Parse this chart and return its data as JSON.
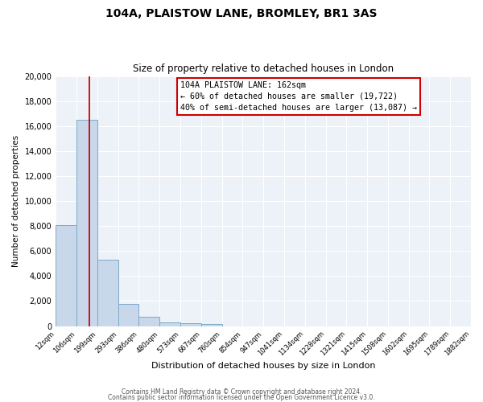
{
  "title": "104A, PLAISTOW LANE, BROMLEY, BR1 3AS",
  "subtitle": "Size of property relative to detached houses in London",
  "xlabel": "Distribution of detached houses by size in London",
  "ylabel": "Number of detached properties",
  "bar_color": "#c8d8ea",
  "bar_edge_color": "#7baac8",
  "background_color": "#edf1f8",
  "grid_color": "#ffffff",
  "annotation_box_color": "#ffffff",
  "annotation_box_edge": "#cc0000",
  "red_line_x": 162,
  "red_line_color": "#cc0000",
  "annotation_title": "104A PLAISTOW LANE: 162sqm",
  "annotation_line1": "← 60% of detached houses are smaller (19,722)",
  "annotation_line2": "40% of semi-detached houses are larger (13,087) →",
  "bins": [
    12,
    106,
    199,
    293,
    386,
    480,
    573,
    667,
    760,
    854,
    947,
    1041,
    1134,
    1228,
    1321,
    1415,
    1508,
    1602,
    1695,
    1789,
    1882
  ],
  "counts": [
    8100,
    16500,
    5300,
    1800,
    750,
    300,
    200,
    150,
    0,
    0,
    0,
    0,
    0,
    0,
    0,
    0,
    0,
    0,
    0,
    0
  ],
  "ylim": [
    0,
    20000
  ],
  "yticks": [
    0,
    2000,
    4000,
    6000,
    8000,
    10000,
    12000,
    14000,
    16000,
    18000,
    20000
  ],
  "footer1": "Contains HM Land Registry data © Crown copyright and database right 2024.",
  "footer2": "Contains public sector information licensed under the Open Government Licence v3.0."
}
